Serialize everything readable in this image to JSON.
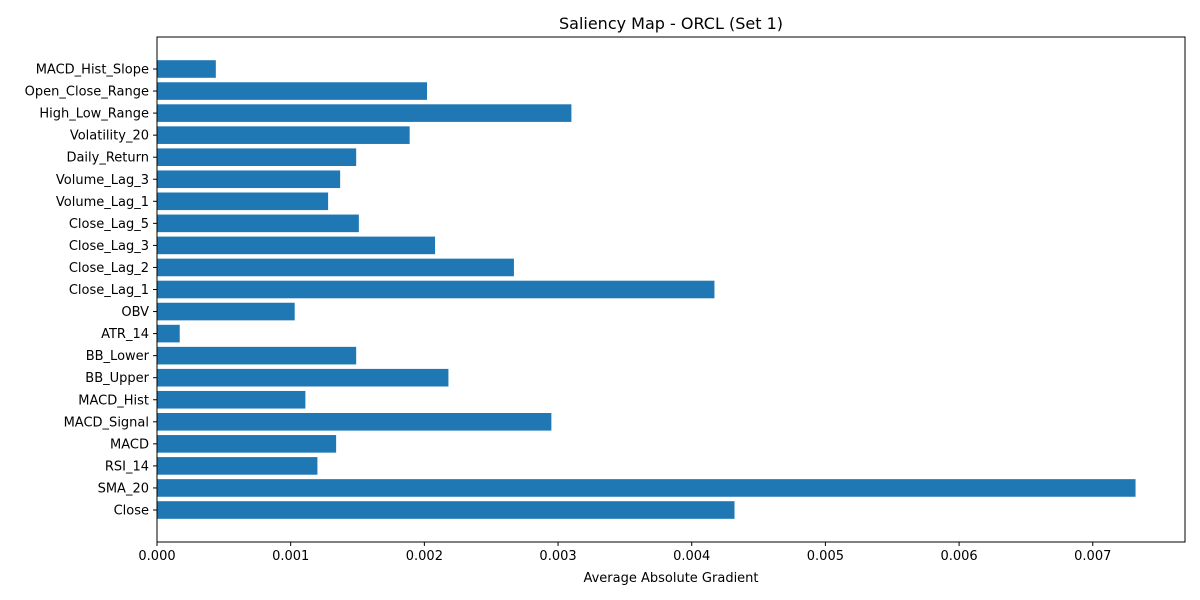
{
  "chart_data": {
    "type": "bar",
    "orientation": "horizontal",
    "title": "Saliency Map - ORCL (Set 1)",
    "xlabel": "Average Absolute Gradient",
    "ylabel": "",
    "categories": [
      "Close",
      "SMA_20",
      "RSI_14",
      "MACD",
      "MACD_Signal",
      "MACD_Hist",
      "BB_Upper",
      "BB_Lower",
      "ATR_14",
      "OBV",
      "Close_Lag_1",
      "Close_Lag_2",
      "Close_Lag_3",
      "Close_Lag_5",
      "Volume_Lag_1",
      "Volume_Lag_3",
      "Daily_Return",
      "Volatility_20",
      "High_Low_Range",
      "Open_Close_Range",
      "MACD_Hist_Slope"
    ],
    "values": [
      0.00432,
      0.00732,
      0.0012,
      0.00134,
      0.00295,
      0.00111,
      0.00218,
      0.00149,
      0.00017,
      0.00103,
      0.00417,
      0.00267,
      0.00208,
      0.00151,
      0.00128,
      0.00137,
      0.00149,
      0.00189,
      0.0031,
      0.00202,
      0.00044
    ],
    "xlim": [
      0,
      0.00769
    ],
    "x_ticks": [
      "0.000",
      "0.001",
      "0.002",
      "0.003",
      "0.004",
      "0.005",
      "0.006",
      "0.007"
    ],
    "x_tick_values": [
      0,
      0.001,
      0.002,
      0.003,
      0.004,
      0.005,
      0.006,
      0.007
    ],
    "grid": false,
    "legend": "none",
    "colors": {
      "bar": "#1f77b4",
      "axis": "#000000",
      "text": "#000000"
    }
  }
}
